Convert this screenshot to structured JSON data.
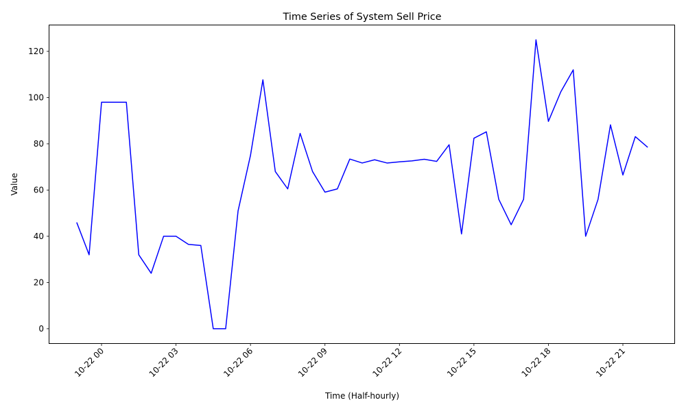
{
  "chart_data": {
    "type": "line",
    "title": "Time Series of System Sell Price",
    "xlabel": "Time (Half-hourly)",
    "ylabel": "Value",
    "x_tick_labels": [
      "10-22 00",
      "10-22 03",
      "10-22 06",
      "10-22 09",
      "10-22 12",
      "10-22 15",
      "10-22 18",
      "10-22 21"
    ],
    "x_tick_hours": [
      0,
      3,
      6,
      9,
      12,
      15,
      18,
      21
    ],
    "y_ticks": [
      0,
      20,
      40,
      60,
      80,
      100,
      120
    ],
    "xlim_hours": [
      -2.1,
      23.1
    ],
    "ylim": [
      -6.25,
      131.25
    ],
    "grid": false,
    "line_color": "#0000ff",
    "series": [
      {
        "x_hours": [
          -1.0,
          -0.5,
          0.0,
          0.5,
          1.0,
          1.5,
          2.0,
          2.5,
          3.0,
          3.5,
          4.0,
          4.5,
          5.0,
          5.5,
          6.0,
          6.5,
          7.0,
          7.5,
          8.0,
          8.5,
          9.0,
          9.5,
          10.0,
          10.5,
          11.0,
          11.5,
          12.0,
          12.5,
          13.0,
          13.5,
          14.0,
          14.5,
          15.0,
          15.5,
          16.0,
          16.5,
          17.0,
          17.5,
          18.0,
          18.5,
          19.0,
          19.5,
          20.0,
          20.5,
          21.0,
          21.5,
          22.0
        ],
        "values": [
          46,
          32,
          98,
          98,
          98,
          32,
          24,
          40,
          40,
          36.5,
          36,
          0,
          0,
          51,
          75,
          107.7,
          68,
          60.5,
          84.5,
          68,
          59.1,
          60.5,
          73.4,
          71.7,
          73.1,
          71.7,
          72.2,
          72.6,
          73.3,
          72.4,
          79.6,
          41,
          82.4,
          85.2,
          56,
          45,
          56,
          125,
          89.7,
          102.5,
          112,
          40,
          56,
          88.2,
          66.5,
          83.1,
          78.5
        ]
      }
    ]
  }
}
